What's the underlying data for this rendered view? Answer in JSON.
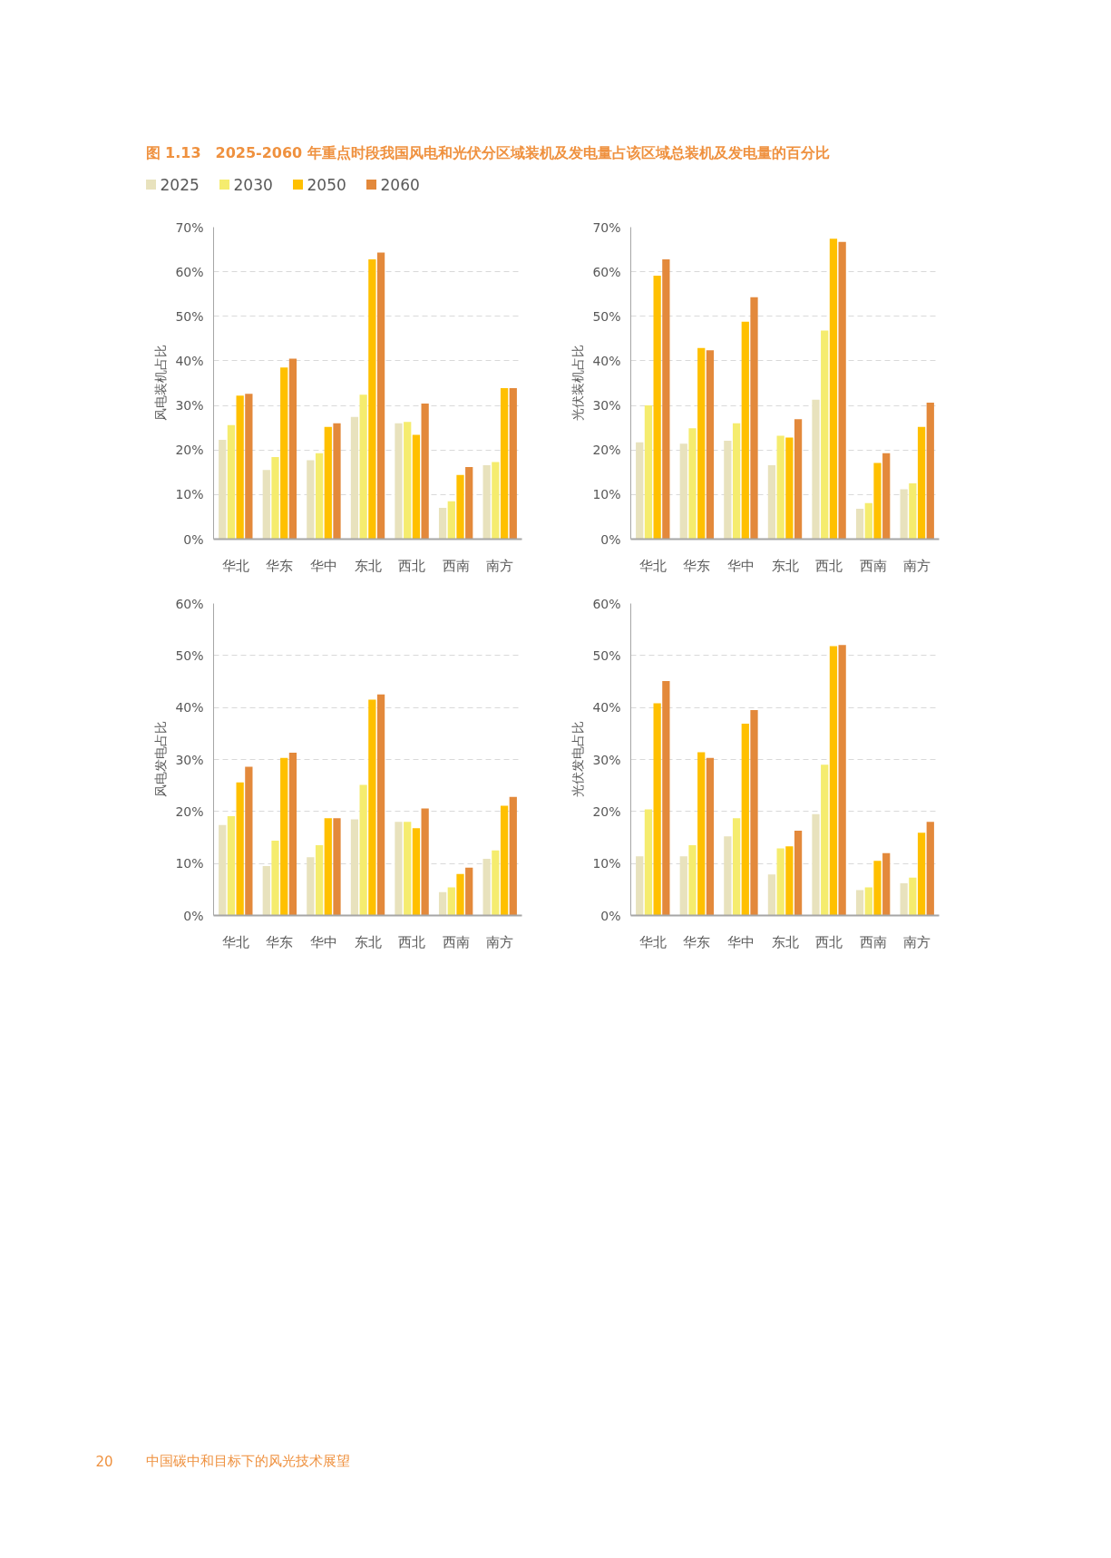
{
  "chart_data": [
    {
      "type": "bar",
      "title": "图 1.13　2025-2060 年重点时段我国风电和光伏分区域装机及发电量占该区域总装机及发电量的百分比",
      "ylabel": "风电装机占比",
      "categories": [
        "华北",
        "华东",
        "华中",
        "东北",
        "西北",
        "西南",
        "南方"
      ],
      "series": [
        {
          "name": "2025",
          "color": "#e8e2bd",
          "values": [
            22.3,
            15.5,
            17.7,
            27.4,
            26.0,
            7.0,
            16.6
          ]
        },
        {
          "name": "2030",
          "color": "#f5ec6e",
          "values": [
            25.6,
            18.4,
            19.3,
            32.4,
            26.3,
            8.5,
            17.3
          ]
        },
        {
          "name": "2050",
          "color": "#ffc000",
          "values": [
            32.2,
            38.5,
            25.2,
            62.8,
            23.4,
            14.4,
            33.9
          ]
        },
        {
          "name": "2060",
          "color": "#e3893b",
          "values": [
            32.6,
            40.5,
            26.0,
            64.3,
            30.4,
            16.2,
            33.9
          ]
        }
      ],
      "ylim": [
        0,
        70
      ],
      "yticks": [
        {
          "value": 0,
          "label": "0%"
        },
        {
          "value": 10,
          "label": "10%"
        },
        {
          "value": 20,
          "label": "20%"
        },
        {
          "value": 30,
          "label": "30%"
        },
        {
          "value": 40,
          "label": "40%"
        },
        {
          "value": 50,
          "label": "50%"
        },
        {
          "value": 60,
          "label": "60%"
        },
        {
          "value": 70,
          "label": "70%"
        }
      ],
      "grid": "y",
      "legend": "top",
      "annotations": [
        "20",
        "中国碳中和目标下的风光技术展望"
      ]
    },
    {
      "type": "bar",
      "ylabel": "光伏装机占比",
      "categories": [
        "华北",
        "华东",
        "华中",
        "东北",
        "西北",
        "西南",
        "南方"
      ],
      "series": [
        {
          "color": "#e8e2bd",
          "values": [
            21.7,
            21.4,
            22.1,
            16.6,
            31.3,
            6.8,
            11.2
          ]
        },
        {
          "color": "#f5ec6e",
          "values": [
            30.0,
            24.9,
            26.0,
            23.2,
            46.8,
            8.1,
            12.5
          ]
        },
        {
          "color": "#ffc000",
          "values": [
            59.1,
            42.9,
            48.8,
            22.8,
            67.4,
            17.1,
            25.2
          ]
        },
        {
          "color": "#e3893b",
          "values": [
            62.8,
            42.4,
            54.3,
            26.9,
            66.7,
            19.3,
            30.6
          ]
        }
      ],
      "ylim": [
        0,
        70
      ],
      "yticks": [
        {
          "value": 0,
          "label": "0%"
        },
        {
          "value": 10,
          "label": "10%"
        },
        {
          "value": 20,
          "label": "20%"
        },
        {
          "value": 30,
          "label": "30%"
        },
        {
          "value": 40,
          "label": "40%"
        },
        {
          "value": 50,
          "label": "50%"
        },
        {
          "value": 60,
          "label": "60%"
        },
        {
          "value": 70,
          "label": "70%"
        }
      ],
      "grid": "y"
    },
    {
      "type": "bar",
      "ylabel": "风电发电占比",
      "categories": [
        "华北",
        "华东",
        "华中",
        "东北",
        "西北",
        "西南",
        "南方"
      ],
      "series": [
        {
          "color": "#e8e2bd",
          "values": [
            17.4,
            9.5,
            11.2,
            18.5,
            18.0,
            4.5,
            10.9
          ]
        },
        {
          "color": "#f5ec6e",
          "values": [
            19.1,
            14.4,
            13.5,
            25.1,
            18.0,
            5.4,
            12.5
          ]
        },
        {
          "color": "#ffc000",
          "values": [
            25.6,
            30.3,
            18.7,
            41.5,
            16.8,
            8.0,
            21.1
          ]
        },
        {
          "color": "#e3893b",
          "values": [
            28.6,
            31.3,
            18.7,
            42.5,
            20.6,
            9.2,
            22.8
          ]
        }
      ],
      "ylim": [
        0,
        60
      ],
      "yticks": [
        {
          "value": 0,
          "label": "0%"
        },
        {
          "value": 10,
          "label": "10%"
        },
        {
          "value": 20,
          "label": "20%"
        },
        {
          "value": 30,
          "label": "30%"
        },
        {
          "value": 40,
          "label": "40%"
        },
        {
          "value": 50,
          "label": "50%"
        },
        {
          "value": 60,
          "label": "60%"
        }
      ],
      "grid": "y"
    },
    {
      "type": "bar",
      "ylabel": "光伏发电占比",
      "categories": [
        "华北",
        "华东",
        "华中",
        "东北",
        "西北",
        "西南",
        "南方"
      ],
      "series": [
        {
          "color": "#e8e2bd",
          "values": [
            11.4,
            11.4,
            15.2,
            7.9,
            19.5,
            4.9,
            6.2
          ]
        },
        {
          "color": "#f5ec6e",
          "values": [
            20.4,
            13.5,
            18.7,
            12.9,
            29.0,
            5.4,
            7.3
          ]
        },
        {
          "color": "#ffc000",
          "values": [
            40.8,
            31.4,
            36.9,
            13.3,
            51.8,
            10.5,
            15.9
          ]
        },
        {
          "color": "#e3893b",
          "values": [
            45.1,
            30.3,
            39.5,
            16.3,
            52.0,
            12.0,
            18.0
          ]
        }
      ],
      "ylim": [
        0,
        60
      ],
      "yticks": [
        {
          "value": 0,
          "label": "0%"
        },
        {
          "value": 10,
          "label": "10%"
        },
        {
          "value": 20,
          "label": "20%"
        },
        {
          "value": 30,
          "label": "30%"
        },
        {
          "value": 40,
          "label": "40%"
        },
        {
          "value": 50,
          "label": "50%"
        },
        {
          "value": 60,
          "label": "60%"
        }
      ],
      "grid": "y"
    }
  ]
}
